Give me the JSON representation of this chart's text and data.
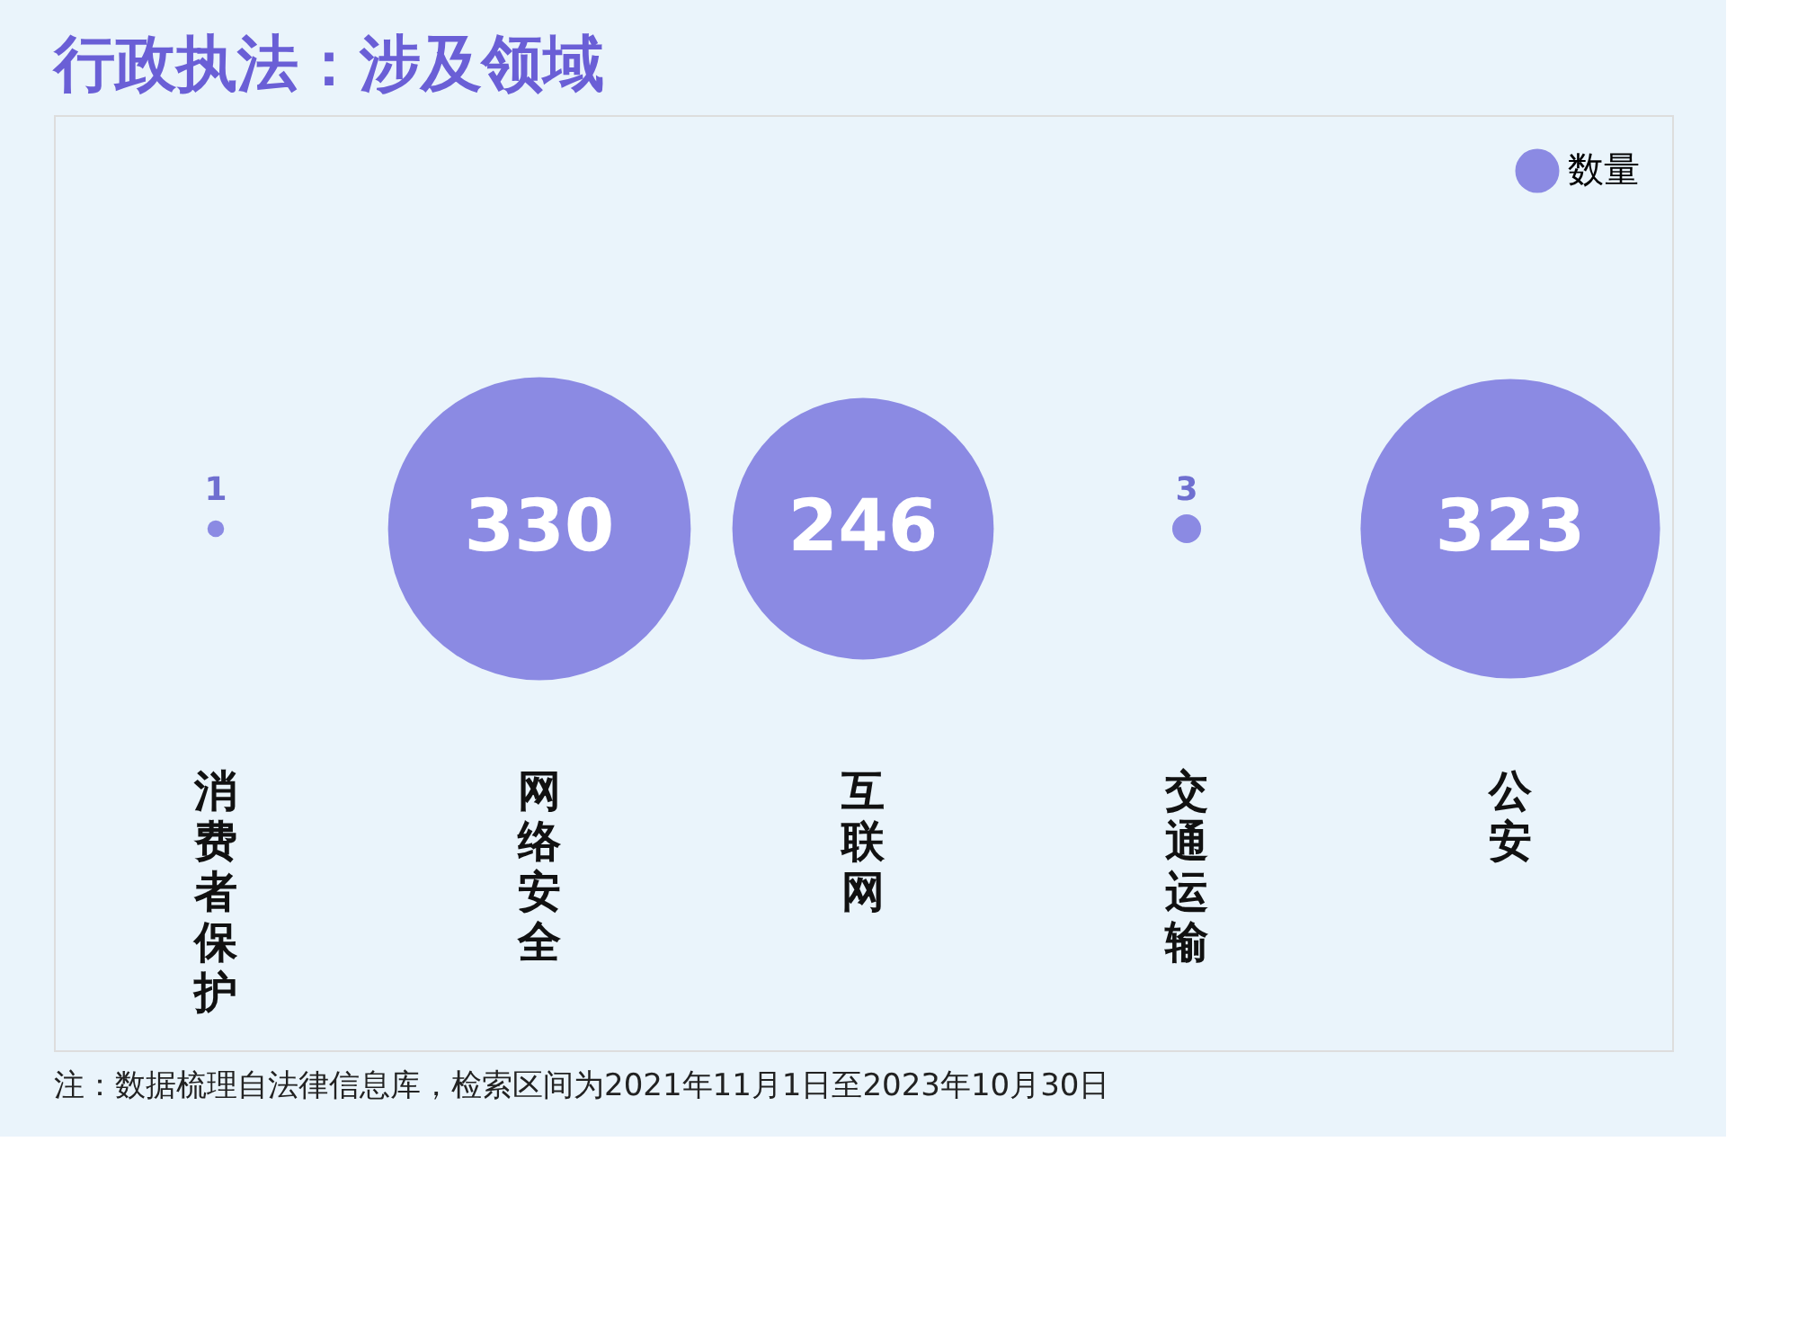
{
  "chart_data": {
    "type": "other",
    "title": "行政执法：涉及领域",
    "categories": [
      "消费者保护",
      "网络安全",
      "互联网",
      "交通运输",
      "公安"
    ],
    "series": [
      {
        "name": "数量",
        "color": "#8b8ae3",
        "values": [
          1,
          330,
          246,
          3,
          323
        ]
      }
    ],
    "data_labels": true,
    "legend": "top right",
    "annotations": [
      "注：数据梳理自法律信息库，检索区间为2021年11月1日至2023年10月30日"
    ]
  }
}
